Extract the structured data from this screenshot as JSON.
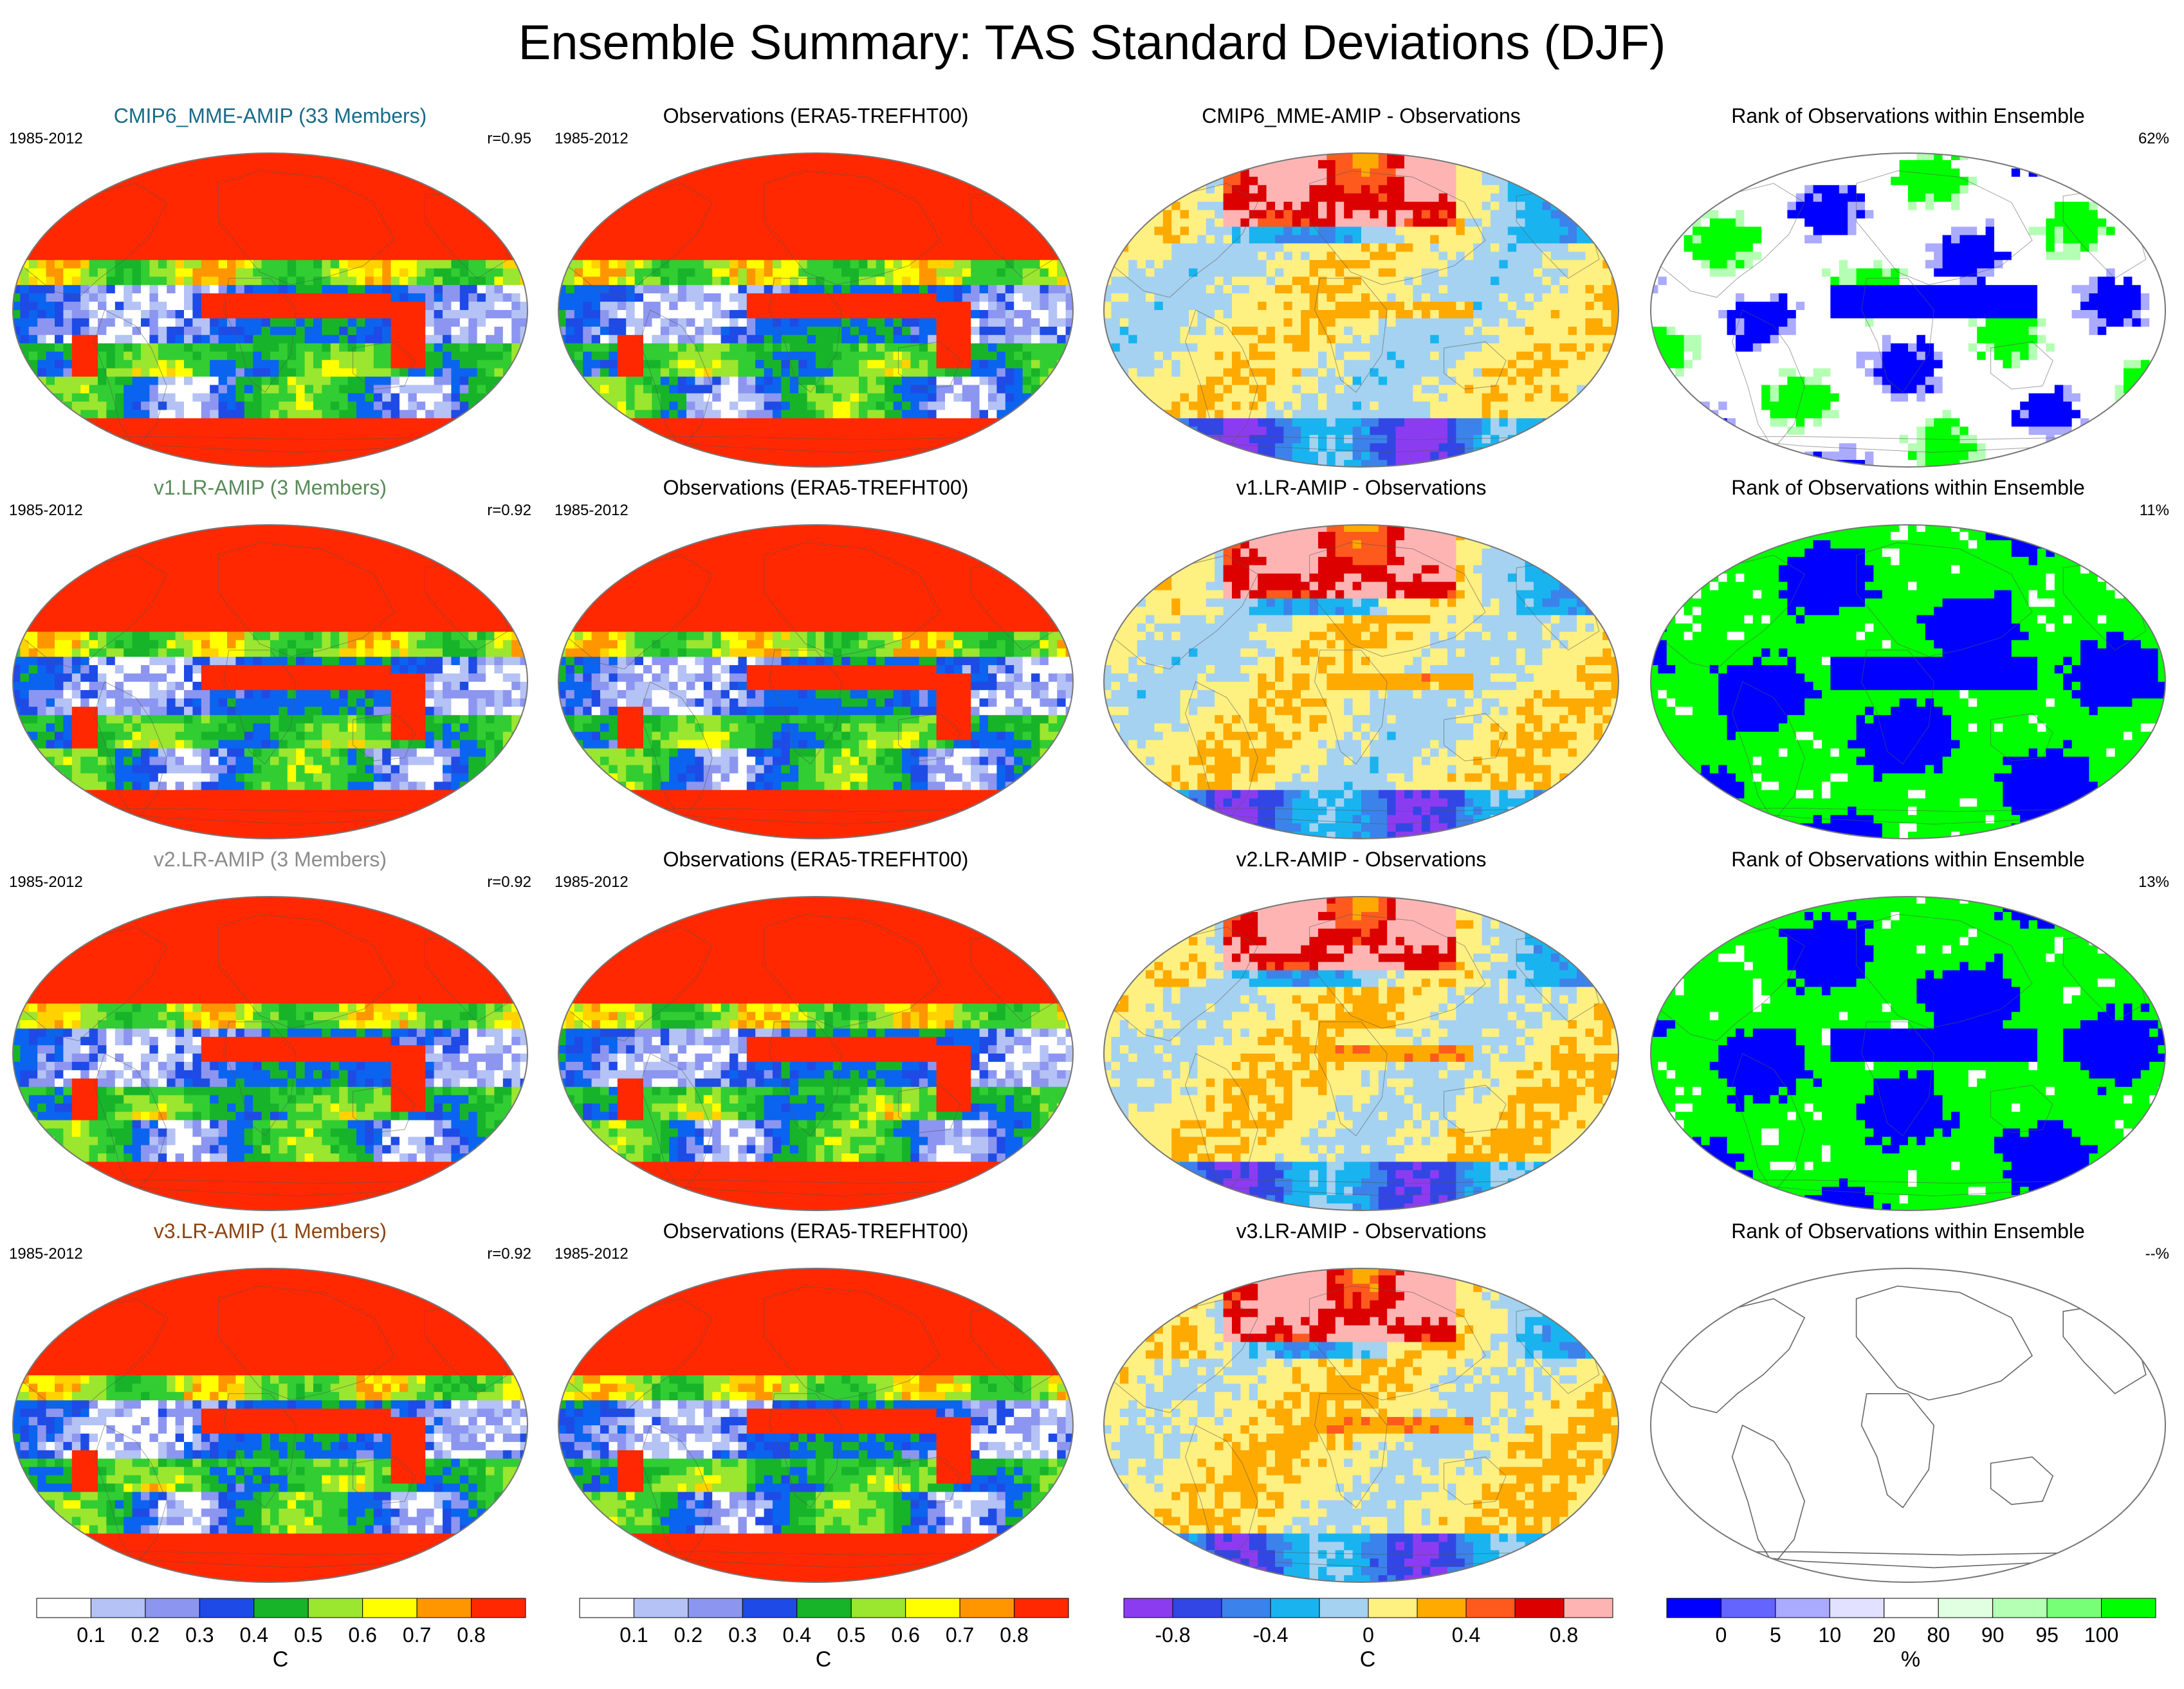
{
  "title": "Ensemble Summary: TAS Standard Deviations (DJF)",
  "colors": {
    "std_levels": [
      "#ffffff",
      "#b4c2f5",
      "#8c96f0",
      "#1e4be6",
      "#0a64f0",
      "#17b42a",
      "#32cd32",
      "#9be62e",
      "#ffff00",
      "#ffd200",
      "#ff9600",
      "#ff2800"
    ],
    "diff_levels": [
      "#8c3cf0",
      "#3246e6",
      "#3c82eb",
      "#19b4f0",
      "#a5d2f0",
      "#fff082",
      "#ffaa00",
      "#ff5a1e",
      "#dc0000",
      "#ffb4b4"
    ],
    "rank_levels": [
      "#0000ff",
      "#6464ff",
      "#aaaaff",
      "#e1e1ff",
      "#ffffff",
      "#e1ffe1",
      "#b4ffb4",
      "#78ff78",
      "#00ff00"
    ]
  },
  "rows": [
    {
      "model": {
        "title": "CMIP6_MME-AMIP (33 Members)",
        "title_color": "#1a6b8a",
        "period": "1985-2012",
        "corr": "r=0.95"
      },
      "obs": {
        "title": "Observations (ERA5-TREFHT00)",
        "period": "1985-2012"
      },
      "diff": {
        "title": "CMIP6_MME-AMIP - Observations"
      },
      "rank": {
        "title": "Rank of Observations within Ensemble",
        "pct": "62%",
        "style": "mixed"
      }
    },
    {
      "model": {
        "title": "v1.LR-AMIP (3 Members)",
        "title_color": "#5a8a5a",
        "period": "1985-2012",
        "corr": "r=0.92"
      },
      "obs": {
        "title": "Observations (ERA5-TREFHT00)",
        "period": "1985-2012"
      },
      "diff": {
        "title": "v1.LR-AMIP - Observations"
      },
      "rank": {
        "title": "Rank of Observations within Ensemble",
        "pct": "11%",
        "style": "saturated"
      }
    },
    {
      "model": {
        "title": "v2.LR-AMIP (3 Members)",
        "title_color": "#8c8c8c",
        "period": "1985-2012",
        "corr": "r=0.92"
      },
      "obs": {
        "title": "Observations (ERA5-TREFHT00)",
        "period": "1985-2012"
      },
      "diff": {
        "title": "v2.LR-AMIP - Observations"
      },
      "rank": {
        "title": "Rank of Observations within Ensemble",
        "pct": "13%",
        "style": "saturated"
      }
    },
    {
      "model": {
        "title": "v3.LR-AMIP (1 Members)",
        "title_color": "#8b4513",
        "period": "1985-2012",
        "corr": "r=0.92"
      },
      "obs": {
        "title": "Observations (ERA5-TREFHT00)",
        "period": "1985-2012"
      },
      "diff": {
        "title": "v3.LR-AMIP - Observations"
      },
      "rank": {
        "title": "Rank of Observations within Ensemble",
        "pct": "--%",
        "style": "empty"
      }
    }
  ],
  "chart_data": [
    {
      "type": "heatmap",
      "name": "model-std",
      "colorbar": {
        "ticks": [
          "0.1",
          "0.2",
          "0.3",
          "0.4",
          "0.5",
          "0.6",
          "0.7",
          "0.8"
        ],
        "unit": "C",
        "n_boxes": 9,
        "box_colors": [
          "#ffffff",
          "#b4c2f5",
          "#8c96f0",
          "#1e4be6",
          "#17b42a",
          "#9be62e",
          "#ffff00",
          "#ff9600",
          "#ff2800"
        ]
      }
    },
    {
      "type": "heatmap",
      "name": "obs-std",
      "colorbar": {
        "ticks": [
          "0.1",
          "0.2",
          "0.3",
          "0.4",
          "0.5",
          "0.6",
          "0.7",
          "0.8"
        ],
        "unit": "C",
        "n_boxes": 9,
        "box_colors": [
          "#ffffff",
          "#b4c2f5",
          "#8c96f0",
          "#1e4be6",
          "#17b42a",
          "#9be62e",
          "#ffff00",
          "#ff9600",
          "#ff2800"
        ]
      }
    },
    {
      "type": "heatmap",
      "name": "difference",
      "colorbar": {
        "ticks": [
          "-0.8",
          "-0.4",
          "0",
          "0.4",
          "0.8"
        ],
        "tick_boundaries": [
          1,
          3,
          5,
          7,
          9
        ],
        "unit": "C",
        "n_boxes": 10,
        "box_colors": [
          "#8c3cf0",
          "#3246e6",
          "#3c82eb",
          "#19b4f0",
          "#a5d2f0",
          "#fff082",
          "#ffaa00",
          "#ff5a1e",
          "#dc0000",
          "#ffb4b4"
        ]
      }
    },
    {
      "type": "heatmap",
      "name": "rank",
      "colorbar": {
        "ticks": [
          "0",
          "5",
          "10",
          "20",
          "80",
          "90",
          "95",
          "100"
        ],
        "tick_boundaries": [
          1,
          2,
          3,
          4,
          5,
          6,
          7,
          8
        ],
        "unit": "%",
        "n_boxes": 9,
        "box_colors": [
          "#0000ff",
          "#6464ff",
          "#aaaaff",
          "#e1e1ff",
          "#ffffff",
          "#e1ffe1",
          "#b4ffb4",
          "#78ff78",
          "#00ff00"
        ]
      }
    }
  ]
}
